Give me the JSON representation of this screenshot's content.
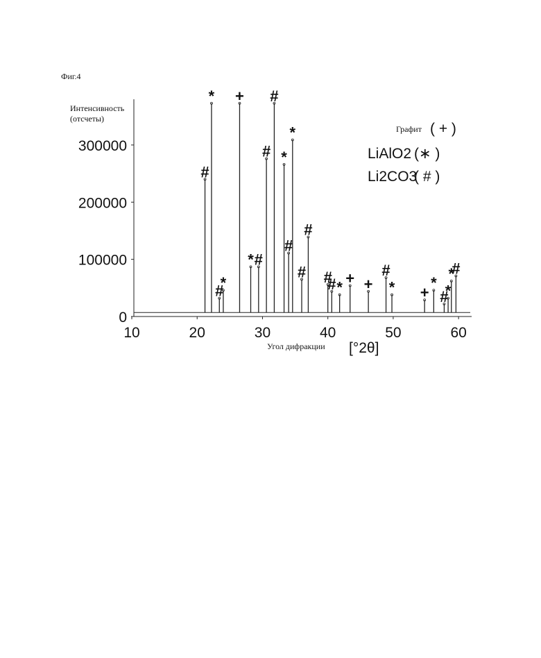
{
  "figure_label": "Фиг.4",
  "chart_data": {
    "type": "stem",
    "y_label": [
      "Интенсивность",
      "(отсчеты)"
    ],
    "x_label": "Угол дифракции",
    "x_unit": "[°2θ]",
    "xlim": [
      10,
      62
    ],
    "xticks": [
      10,
      20,
      30,
      40,
      50,
      60
    ],
    "ylim": [
      0,
      380000
    ],
    "yticks": [
      0,
      100000,
      200000,
      300000
    ],
    "baseline": 7000,
    "color": "#222222",
    "legend": [
      {
        "name": "Графит",
        "symbol": "( + )"
      },
      {
        "name": "LiAlO2",
        "symbol": "(∗ )"
      },
      {
        "name": "Li2CO3",
        "symbol": "( # )"
      }
    ],
    "peaks": {
      "x": [
        21.2,
        22.2,
        23.4,
        24.0,
        26.5,
        28.2,
        29.4,
        30.6,
        31.8,
        33.3,
        34.0,
        34.6,
        36.0,
        37.0,
        40.0,
        40.6,
        41.8,
        43.4,
        46.2,
        48.9,
        49.8,
        54.8,
        56.2,
        57.8,
        58.4,
        58.9,
        59.6
      ],
      "values": [
        240000,
        373000,
        32000,
        46000,
        373000,
        87000,
        87000,
        276000,
        373000,
        266000,
        111000,
        309000,
        65000,
        139000,
        56000,
        44000,
        38000,
        54000,
        44000,
        68000,
        38000,
        29000,
        46000,
        22000,
        32000,
        62000,
        71000
      ],
      "labels": [
        "#",
        "*",
        "#",
        "*",
        "+",
        "*",
        "#",
        "#",
        "#",
        "*",
        "#",
        "*",
        "#",
        "#",
        "#",
        "#",
        "*",
        "+",
        "+",
        "#",
        "*",
        "+",
        "*",
        "#",
        "*",
        "*",
        "#"
      ]
    }
  }
}
